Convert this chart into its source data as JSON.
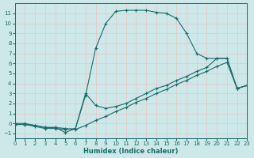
{
  "xlabel": "Humidex (Indice chaleur)",
  "background_color": "#cde8e8",
  "grid_color": "#d4e8e8",
  "line_color": "#1a6b6b",
  "xlim": [
    0,
    23
  ],
  "ylim": [
    -1.5,
    12
  ],
  "xtick_min": 0,
  "xtick_max": 23,
  "yticks": [
    -1,
    0,
    1,
    2,
    3,
    4,
    5,
    6,
    7,
    8,
    9,
    10,
    11
  ],
  "curve1_x": [
    0,
    1,
    2,
    3,
    4,
    5,
    6,
    7,
    8,
    9,
    10,
    11,
    12,
    13,
    14,
    15,
    16,
    17,
    18,
    19,
    20,
    21,
    22,
    23
  ],
  "curve1_y": [
    0,
    0,
    -0.2,
    -0.4,
    -0.4,
    -0.9,
    -0.5,
    2.8,
    7.5,
    10.0,
    11.2,
    11.3,
    11.3,
    11.3,
    11.1,
    11.0,
    10.5,
    9.0,
    7.0,
    6.5,
    6.5,
    6.5,
    3.5,
    3.8
  ],
  "curve2_x": [
    0,
    1,
    2,
    3,
    4,
    5,
    6,
    7,
    8,
    9,
    10,
    11,
    12,
    13,
    14,
    15,
    16,
    17,
    18,
    19,
    20,
    21,
    22,
    23
  ],
  "curve2_y": [
    -0.1,
    -0.1,
    -0.3,
    -0.5,
    -0.5,
    -0.6,
    -0.5,
    3.0,
    1.8,
    1.5,
    1.7,
    2.0,
    2.5,
    3.0,
    3.5,
    3.8,
    4.3,
    4.7,
    5.2,
    5.6,
    6.5,
    6.5,
    3.5,
    3.8
  ],
  "curve3_x": [
    0,
    1,
    2,
    3,
    4,
    5,
    6,
    7,
    8,
    9,
    10,
    11,
    12,
    13,
    14,
    15,
    16,
    17,
    18,
    19,
    20,
    21,
    22,
    23
  ],
  "curve3_y": [
    -0.1,
    -0.1,
    -0.2,
    -0.4,
    -0.4,
    -0.5,
    -0.6,
    -0.2,
    0.3,
    0.7,
    1.2,
    1.6,
    2.1,
    2.5,
    3.0,
    3.4,
    3.9,
    4.3,
    4.8,
    5.2,
    5.7,
    6.1,
    3.5,
    3.8
  ]
}
